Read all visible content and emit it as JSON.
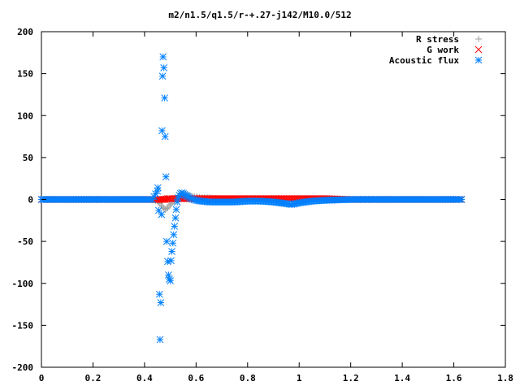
{
  "chart_data": {
    "type": "scatter",
    "title": "m2/n1.5/q1.5/r-+.27-j142/M10.0/512",
    "xlabel": "",
    "ylabel": "",
    "xlim": [
      0,
      1.8
    ],
    "ylim": [
      -200,
      200
    ],
    "x_ticks": [
      0,
      0.2,
      0.4,
      0.6,
      0.8,
      1,
      1.2,
      1.4,
      1.6,
      1.8
    ],
    "x_tick_labels": [
      "0",
      "0.2",
      "0.4",
      "0.6",
      "0.8",
      "1",
      "1.2",
      "1.4",
      "1.6",
      "1.8"
    ],
    "y_ticks": [
      -200,
      -150,
      -100,
      -50,
      0,
      50,
      100,
      150,
      200
    ],
    "y_tick_labels": [
      "-200",
      "-150",
      "-100",
      "-50",
      "0",
      "50",
      "100",
      "150",
      "200"
    ],
    "grid": false,
    "legend_position": "top-right",
    "series": [
      {
        "name": "R stress",
        "marker": "plus",
        "color": "#a0a0a0",
        "x": [
          0.0,
          0.05,
          0.1,
          0.15,
          0.2,
          0.25,
          0.3,
          0.35,
          0.4,
          0.43,
          0.45,
          0.46,
          0.47,
          0.48,
          0.49,
          0.5,
          0.51,
          0.52,
          0.53,
          0.54,
          0.55,
          0.56,
          0.57,
          0.58,
          0.6,
          0.62,
          0.65,
          0.7,
          0.75,
          0.8,
          0.85,
          0.9,
          0.95,
          1.0,
          1.05,
          1.1,
          1.15,
          1.2,
          1.3,
          1.4,
          1.5,
          1.6,
          1.63
        ],
        "y": [
          0,
          0,
          0,
          0,
          0,
          0,
          0,
          0,
          0,
          0,
          -2,
          -5,
          -9,
          -12,
          -10,
          -6,
          -3,
          0,
          3,
          5,
          6,
          6,
          5,
          4,
          3,
          2,
          2,
          1,
          1,
          1,
          1,
          0,
          0,
          0,
          0,
          0,
          0,
          0,
          0,
          0,
          0,
          0,
          0
        ]
      },
      {
        "name": "G work",
        "marker": "cross",
        "color": "#ff0000",
        "x": [
          0.0,
          0.1,
          0.2,
          0.3,
          0.4,
          0.45,
          0.46,
          0.47,
          0.48,
          0.49,
          0.5,
          0.52,
          0.55,
          0.6,
          0.65,
          0.7,
          0.75,
          0.8,
          0.85,
          0.9,
          0.95,
          1.0,
          1.05,
          1.1,
          1.2,
          1.3,
          1.4,
          1.5,
          1.6,
          1.63
        ],
        "y": [
          0,
          0,
          0,
          0,
          0,
          0,
          0,
          0,
          0,
          1,
          1,
          1,
          1,
          1,
          1,
          1,
          1,
          1,
          1,
          1,
          1,
          1,
          1,
          1,
          0,
          0,
          0,
          0,
          0,
          0
        ]
      },
      {
        "name": "Acoustic flux",
        "marker": "star",
        "color": "#0080ff",
        "x": [
          0.0,
          0.05,
          0.1,
          0.15,
          0.2,
          0.25,
          0.3,
          0.35,
          0.4,
          0.43,
          0.45,
          0.452,
          0.455,
          0.458,
          0.46,
          0.463,
          0.466,
          0.468,
          0.47,
          0.472,
          0.475,
          0.478,
          0.48,
          0.483,
          0.486,
          0.49,
          0.493,
          0.496,
          0.5,
          0.503,
          0.506,
          0.51,
          0.513,
          0.516,
          0.52,
          0.523,
          0.527,
          0.53,
          0.535,
          0.54,
          0.545,
          0.55,
          0.56,
          0.57,
          0.58,
          0.6,
          0.62,
          0.65,
          0.7,
          0.75,
          0.8,
          0.85,
          0.9,
          0.95,
          0.97,
          1.0,
          1.05,
          1.1,
          1.2,
          1.3,
          1.4,
          1.5,
          1.6,
          1.63
        ],
        "y": [
          0,
          0,
          0,
          0,
          0,
          0,
          0,
          0,
          0,
          0,
          10,
          14,
          -13,
          -113,
          -167,
          -123,
          -18,
          82,
          147,
          170,
          157,
          121,
          75,
          27,
          -50,
          -74,
          -90,
          -95,
          -97,
          -73,
          -62,
          -52,
          -42,
          -32,
          -22,
          -12,
          -3,
          2,
          5,
          7,
          8,
          7,
          5,
          3,
          1,
          -1,
          -2,
          -3,
          -3,
          -3,
          -2,
          -2,
          -3,
          -5,
          -6,
          -4,
          -2,
          -1,
          0,
          0,
          0,
          0,
          0,
          0
        ]
      }
    ]
  }
}
